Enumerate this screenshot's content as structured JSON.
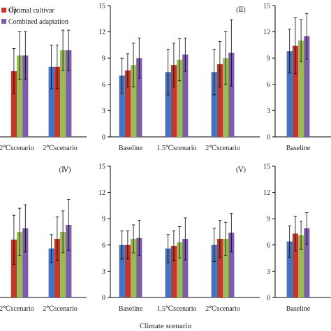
{
  "figure": {
    "xlabel": "Climate scenario",
    "legend": [
      {
        "name": "Optimal cultivar",
        "color": "#c0392b"
      },
      {
        "name": "Combined adaptation",
        "color": "#7b5ea7"
      }
    ],
    "series_colors": [
      "#4472c4",
      "#c0392b",
      "#9bbb59",
      "#7b5ea7"
    ]
  },
  "chart_data": [
    {
      "type": "bar",
      "panel": "I",
      "ylim": [
        0,
        15
      ],
      "yticks": [],
      "categories": [
        "2℃scenario",
        "2℃scenario"
      ],
      "values": [
        [
          null,
          7.5,
          9.3,
          9.3
        ],
        [
          8.0,
          8.0,
          9.9,
          9.9
        ]
      ],
      "errors": [
        [
          null,
          2.6,
          2.7,
          2.7
        ],
        [
          2.5,
          2.5,
          2.3,
          2.3
        ]
      ]
    },
    {
      "type": "bar",
      "panel": "II",
      "ylim": [
        0,
        15
      ],
      "yticks": [
        "0",
        "3",
        "6",
        "9",
        "12",
        "15"
      ],
      "categories": [
        "Baseline",
        "1.5℃scenario",
        "2℃scenario"
      ],
      "values": [
        [
          7.0,
          7.6,
          8.2,
          9.0
        ],
        [
          7.4,
          8.2,
          8.8,
          9.4
        ],
        [
          7.4,
          8.3,
          9.0,
          9.6
        ]
      ],
      "errors": [
        [
          2.0,
          1.9,
          2.5,
          2.3
        ],
        [
          2.6,
          2.5,
          2.4,
          1.9
        ],
        [
          2.6,
          2.6,
          3.0,
          3.8
        ]
      ]
    },
    {
      "type": "bar",
      "panel": "III",
      "ylim": [
        0,
        15
      ],
      "yticks": [
        "0",
        "3",
        "6",
        "9",
        "12",
        "15"
      ],
      "categories": [
        "Baseline"
      ],
      "values": [
        [
          9.8,
          10.4,
          11.0,
          11.5
        ]
      ],
      "errors": [
        [
          2.5,
          3.2,
          2.4,
          2.6
        ]
      ]
    },
    {
      "type": "bar",
      "panel": "IV",
      "ylim": [
        0,
        15
      ],
      "yticks": [],
      "categories": [
        "2℃scenario",
        "2℃scenario"
      ],
      "values": [
        [
          null,
          6.6,
          7.5,
          7.9
        ],
        [
          5.6,
          6.7,
          7.5,
          8.3
        ]
      ],
      "errors": [
        [
          null,
          2.8,
          2.7,
          2.7
        ],
        [
          1.6,
          2.5,
          2.4,
          2.9
        ]
      ]
    },
    {
      "type": "bar",
      "panel": "V",
      "ylim": [
        0,
        15
      ],
      "yticks": [
        "0",
        "3",
        "6",
        "9",
        "12",
        "15"
      ],
      "categories": [
        "Baseline",
        "1.5℃scenario",
        "2℃scenario"
      ],
      "values": [
        [
          6.0,
          6.0,
          6.7,
          6.8
        ],
        [
          5.6,
          5.9,
          6.3,
          6.7
        ],
        [
          6.0,
          6.7,
          6.7,
          7.4
        ]
      ],
      "errors": [
        [
          1.6,
          1.6,
          1.6,
          2.0
        ],
        [
          1.6,
          1.7,
          1.8,
          2.4
        ],
        [
          1.9,
          2.1,
          1.9,
          2.2
        ]
      ]
    },
    {
      "type": "bar",
      "panel": "VI",
      "ylim": [
        0,
        15
      ],
      "yticks": [
        "0",
        "3",
        "6",
        "9",
        "12",
        "15"
      ],
      "categories": [
        "Baseline"
      ],
      "values": [
        [
          6.4,
          7.3,
          7.1,
          7.9
        ]
      ],
      "errors": [
        [
          1.8,
          2.0,
          1.6,
          1.8
        ]
      ]
    }
  ],
  "panel_labels": [
    "(Ⅰ)",
    "(Ⅱ)",
    "",
    "(Ⅳ)",
    "(Ⅴ)",
    ""
  ]
}
